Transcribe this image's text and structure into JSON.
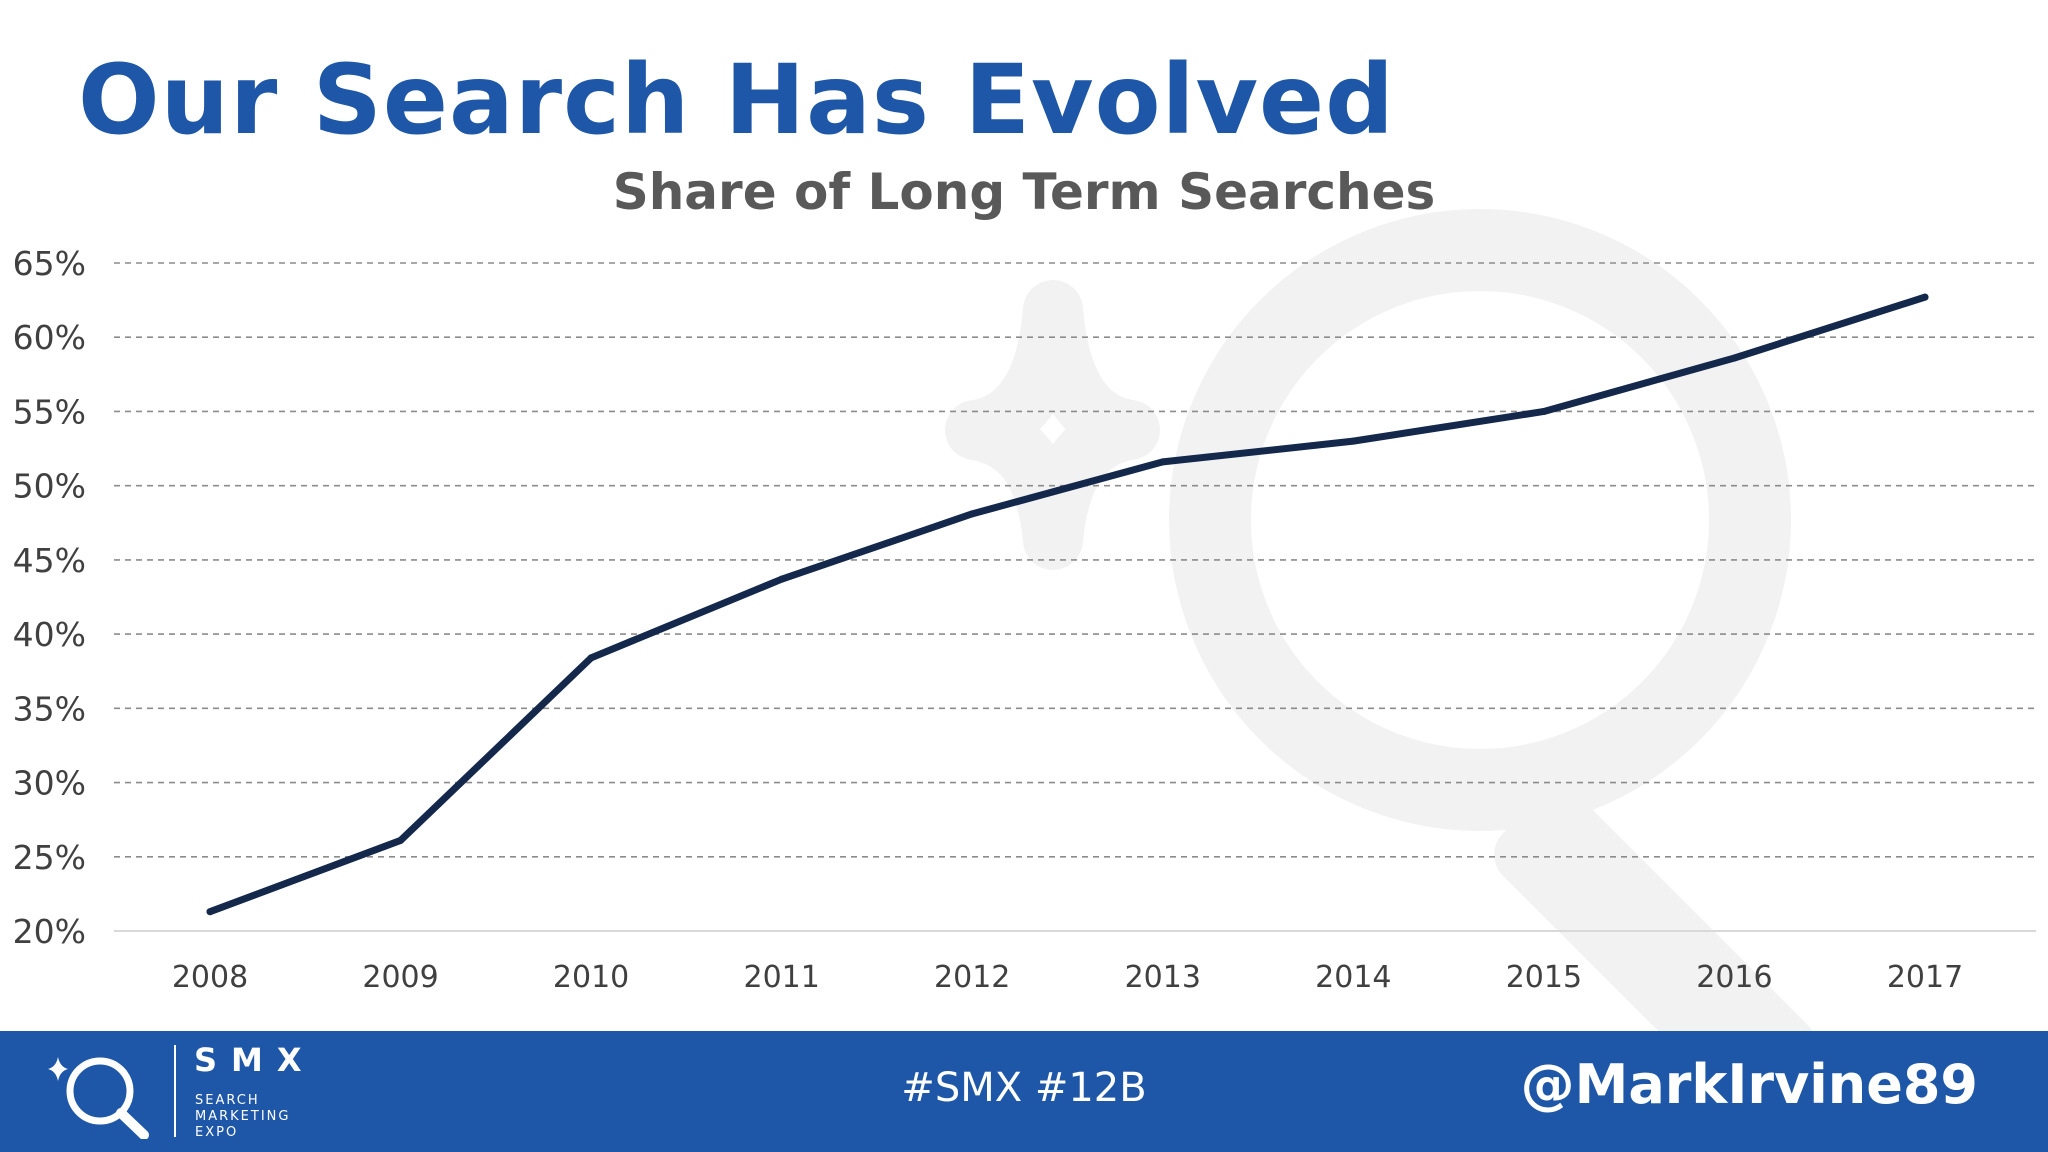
{
  "slide": {
    "title": "Our Search Has Evolved"
  },
  "chart_data": {
    "type": "line",
    "title": "Share of Long Term Searches",
    "xlabel": "",
    "ylabel": "",
    "x": [
      "2008",
      "2009",
      "2010",
      "2011",
      "2012",
      "2013",
      "2014",
      "2015",
      "2016",
      "2017"
    ],
    "series": [
      {
        "values": [
          21.3,
          26.1,
          38.4,
          43.7,
          48.1,
          51.6,
          53.0,
          55.0,
          58.6,
          62.7
        ],
        "color": "#14284b"
      }
    ],
    "yticks": [
      "20%",
      "25%",
      "30%",
      "35%",
      "40%",
      "45%",
      "50%",
      "55%",
      "60%",
      "65%"
    ],
    "ylim": [
      20,
      65
    ],
    "grid": true,
    "grid_style": "dashed",
    "legend": "none"
  },
  "footer": {
    "logo": {
      "wordmark": "SMX",
      "line1": "SEARCH",
      "line2": "MARKETING",
      "line3": "EXPO",
      "icon": "magnifier-sparkle-icon"
    },
    "hashtags": "#SMX #12B",
    "handle": "@MarkIrvine89",
    "background": "#1f57a8"
  },
  "colors": {
    "title": "#1f57a8",
    "chart_title": "#595959",
    "watermark": "#f2f2f2"
  }
}
